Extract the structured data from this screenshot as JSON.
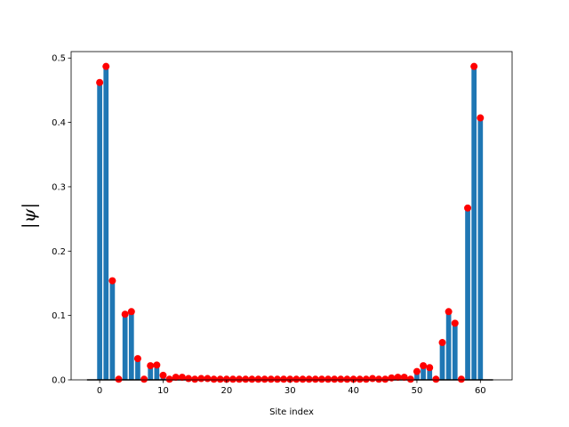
{
  "chart_data": {
    "type": "bar",
    "title": "",
    "xlabel": "Site index",
    "ylabel": "|ψ|",
    "xlim": [
      -4.5,
      65.0
    ],
    "ylim": [
      0,
      0.51
    ],
    "xticks": [
      0,
      10,
      20,
      30,
      40,
      50,
      60
    ],
    "yticks": [
      0.0,
      0.1,
      0.2,
      0.3,
      0.4,
      0.5
    ],
    "x": [
      0,
      1,
      2,
      3,
      4,
      5,
      6,
      7,
      8,
      9,
      10,
      11,
      12,
      13,
      14,
      15,
      16,
      17,
      18,
      19,
      20,
      21,
      22,
      23,
      24,
      25,
      26,
      27,
      28,
      29,
      30,
      31,
      32,
      33,
      34,
      35,
      36,
      37,
      38,
      39,
      40,
      41,
      42,
      43,
      44,
      45,
      46,
      47,
      48,
      49,
      50,
      51,
      52,
      53,
      54,
      55,
      56,
      57,
      58,
      59,
      60
    ],
    "values": [
      0.462,
      0.487,
      0.154,
      0.001,
      0.102,
      0.106,
      0.033,
      0.001,
      0.022,
      0.023,
      0.007,
      0.001,
      0.004,
      0.004,
      0.002,
      0.001,
      0.002,
      0.002,
      0.001,
      0.001,
      0.001,
      0.001,
      0.001,
      0.001,
      0.001,
      0.001,
      0.001,
      0.001,
      0.001,
      0.001,
      0.001,
      0.001,
      0.001,
      0.001,
      0.001,
      0.001,
      0.001,
      0.001,
      0.001,
      0.001,
      0.001,
      0.001,
      0.001,
      0.002,
      0.001,
      0.001,
      0.003,
      0.004,
      0.004,
      0.001,
      0.013,
      0.022,
      0.019,
      0.001,
      0.058,
      0.106,
      0.088,
      0.001,
      0.267,
      0.487,
      0.407
    ],
    "baseline_range": [
      -2,
      62
    ],
    "colors": {
      "bar": "#1f77b4",
      "marker": "#ff0000",
      "baseline": "#000000"
    }
  }
}
